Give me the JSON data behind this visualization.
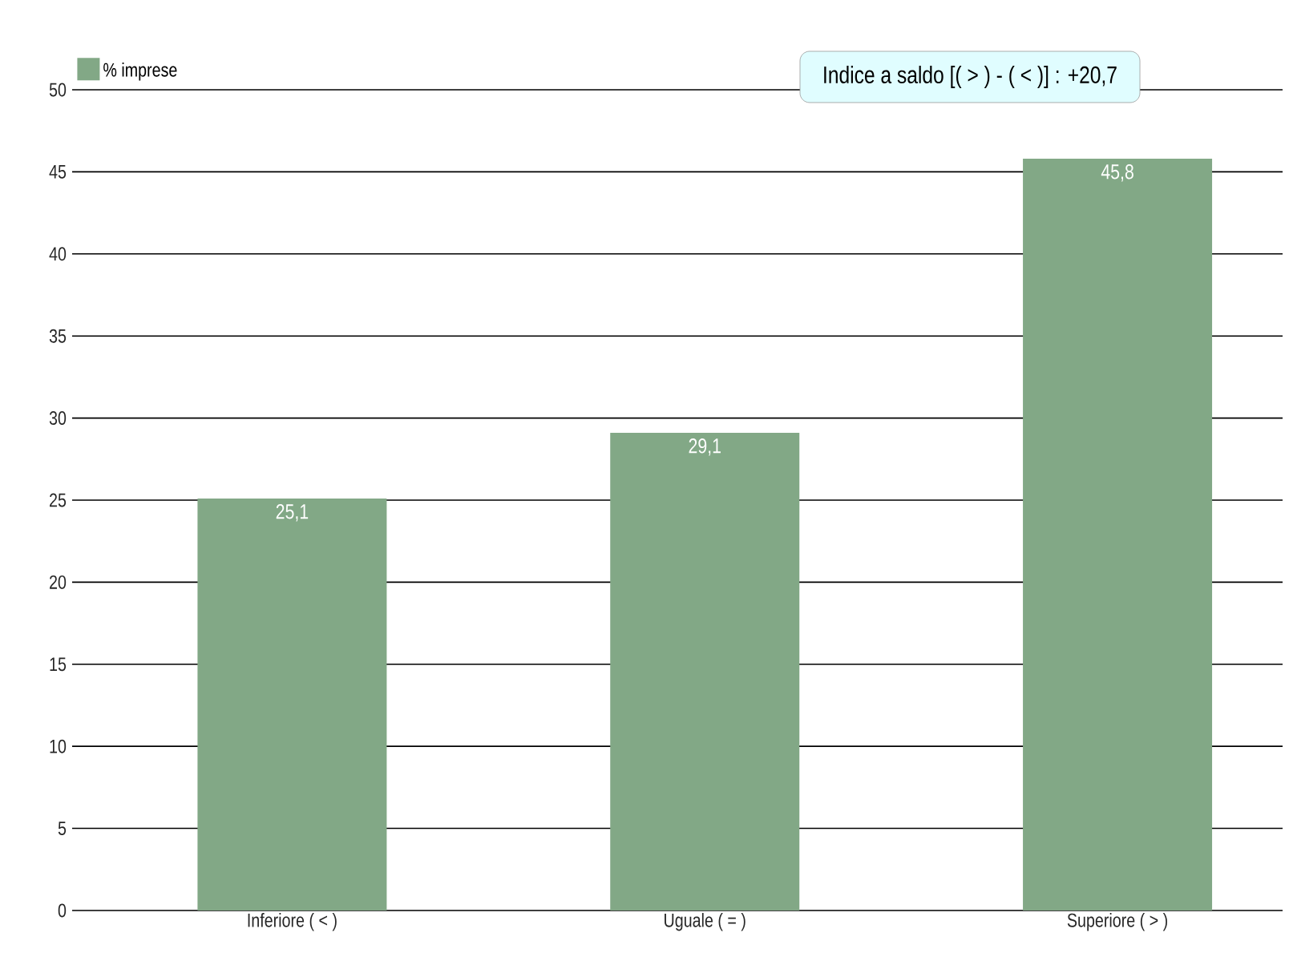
{
  "chart_data": {
    "type": "bar",
    "categories": [
      "Inferiore ( < )",
      "Uguale ( = )",
      "Superiore ( > )"
    ],
    "series": [
      {
        "name": "% imprese",
        "color": "#82a886",
        "values": [
          25.1,
          29.1,
          45.8
        ]
      }
    ],
    "value_labels": [
      "25,1",
      "29,1",
      "45,8"
    ],
    "ylim": [
      0,
      50
    ],
    "yticks": [
      0,
      5,
      10,
      15,
      20,
      25,
      30,
      35,
      40,
      45,
      50
    ],
    "grid": "y",
    "legend": "top left",
    "annotations": [
      "Indice a saldo [( > ) - ( < )] : +20,7"
    ]
  }
}
